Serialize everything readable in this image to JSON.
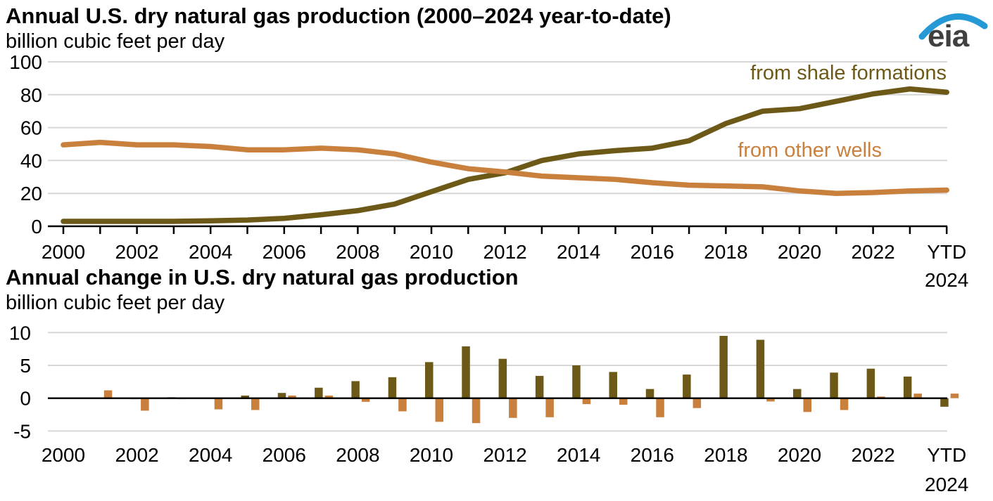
{
  "header": {
    "title": "Annual U.S. dry natural gas production (2000–2024 year-to-date)",
    "subtitle": "billion cubic feet per day",
    "logo_text": "eia"
  },
  "section2": {
    "title": "Annual change in U.S. dry natural gas production",
    "subtitle": "billion cubic feet per day"
  },
  "colors": {
    "shale": "#6d5917",
    "other": "#c9803d",
    "gridline": "#d6d6d6",
    "axis": "#000000",
    "logo_blue": "#2499d6",
    "logo_gray": "#404040"
  },
  "chart_data": [
    {
      "type": "line",
      "title": "Annual U.S. dry natural gas production (2000–2024 year-to-date)",
      "ylabel": "billion cubic feet per day",
      "x": [
        "2000",
        "2001",
        "2002",
        "2003",
        "2004",
        "2005",
        "2006",
        "2007",
        "2008",
        "2009",
        "2010",
        "2011",
        "2012",
        "2013",
        "2014",
        "2015",
        "2016",
        "2017",
        "2018",
        "2019",
        "2020",
        "2021",
        "2022",
        "2023",
        "YTD 2024"
      ],
      "xtick_labels": [
        "2000",
        "2002",
        "2004",
        "2006",
        "2008",
        "2010",
        "2012",
        "2014",
        "2016",
        "2018",
        "2020",
        "2022",
        "YTD 2024"
      ],
      "last_tick_label_line1": "YTD",
      "last_tick_label_line2": "2024",
      "ylim": [
        0,
        100
      ],
      "yticks": [
        0,
        20,
        40,
        60,
        80,
        100
      ],
      "grid": true,
      "legend_position": "inline-right",
      "series": [
        {
          "name": "from shale formations",
          "color": "#6d5917",
          "values": [
            3,
            3,
            3,
            3,
            3.3,
            3.8,
            4.8,
            7,
            9.5,
            13.5,
            21,
            28.5,
            32.5,
            40,
            44,
            46,
            47.5,
            52,
            62.5,
            70,
            71.5,
            76,
            80.5,
            83.5,
            81.5
          ]
        },
        {
          "name": "from other wells",
          "color": "#c9803d",
          "values": [
            49.5,
            51,
            49.5,
            49.5,
            48.5,
            46.5,
            46.5,
            47.5,
            46.5,
            44,
            39,
            35,
            33,
            30.5,
            29.5,
            28.5,
            26.5,
            25,
            24.5,
            24,
            21.5,
            20,
            20.5,
            21.5,
            22
          ]
        }
      ]
    },
    {
      "type": "bar",
      "title": "Annual change in U.S. dry natural gas production",
      "ylabel": "billion cubic feet per day",
      "x": [
        "2000",
        "2001",
        "2002",
        "2003",
        "2004",
        "2005",
        "2006",
        "2007",
        "2008",
        "2009",
        "2010",
        "2011",
        "2012",
        "2013",
        "2014",
        "2015",
        "2016",
        "2017",
        "2018",
        "2019",
        "2020",
        "2021",
        "2022",
        "2023",
        "YTD 2024"
      ],
      "xtick_labels": [
        "2000",
        "2002",
        "2004",
        "2006",
        "2008",
        "2010",
        "2012",
        "2014",
        "2016",
        "2018",
        "2020",
        "2022",
        "YTD 2024"
      ],
      "last_tick_label_line1": "YTD",
      "last_tick_label_line2": "2024",
      "ylim": [
        -5,
        10
      ],
      "yticks": [
        -5,
        0,
        5,
        10
      ],
      "grid": true,
      "series": [
        {
          "name": "from shale formations",
          "color": "#6d5917",
          "values": [
            null,
            0,
            -0.15,
            0.15,
            0.1,
            0.4,
            0.8,
            1.6,
            2.6,
            3.2,
            5.5,
            7.9,
            6.0,
            3.4,
            5.0,
            4.0,
            1.4,
            3.6,
            9.5,
            8.9,
            1.4,
            3.9,
            4.5,
            3.3,
            -1.3
          ]
        },
        {
          "name": "from other wells",
          "color": "#c9803d",
          "values": [
            null,
            1.2,
            -1.9,
            -0.15,
            -1.7,
            -1.8,
            0.4,
            0.4,
            -0.55,
            -2.0,
            -3.6,
            -3.8,
            -3.0,
            -2.9,
            -0.9,
            -1.0,
            -2.9,
            -1.5,
            -0.1,
            -0.5,
            -2.1,
            -1.8,
            0.25,
            0.7,
            0.7
          ]
        }
      ]
    }
  ]
}
